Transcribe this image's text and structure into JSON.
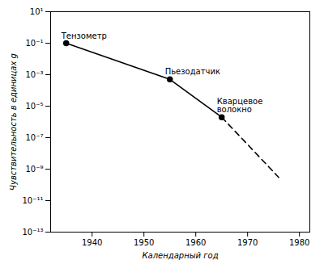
{
  "chart_data": {
    "type": "line",
    "xlabel": "Календарный год",
    "ylabel": "Чувствительность в единицах g",
    "log": "y",
    "color": "#000000",
    "xlim": [
      1932,
      1982
    ],
    "xticks": [
      1940,
      1950,
      1960,
      1970,
      1980
    ],
    "ylim": [
      1e-13,
      10
    ],
    "yticks": [
      {
        "value": 10,
        "label": "10¹"
      },
      {
        "value": 0.1,
        "label": "10⁻¹"
      },
      {
        "value": 0.001,
        "label": "10⁻³"
      },
      {
        "value": 1e-05,
        "label": "10⁻⁵"
      },
      {
        "value": 1e-07,
        "label": "10⁻⁷"
      },
      {
        "value": 1e-09,
        "label": "10⁻⁹"
      },
      {
        "value": 1e-11,
        "label": "10⁻¹¹"
      },
      {
        "value": 1e-13,
        "label": "10⁻¹³"
      }
    ],
    "series": [
      {
        "x": [
          1935,
          1955,
          1965
        ],
        "values": [
          0.1,
          0.0005,
          2e-06
        ],
        "line_style": "solid",
        "marker": "circle"
      },
      {
        "x": [
          1965,
          1976
        ],
        "values": [
          2e-06,
          3e-10
        ],
        "line_style": "dashed",
        "marker": "none"
      }
    ],
    "annotations": [
      {
        "text": "Тензометр",
        "x": 1935,
        "y": 0.1
      },
      {
        "text": "Пьезодатчик",
        "x": 1955,
        "y": 0.0005
      },
      {
        "text": "Кварцевое волокно",
        "x": 1965,
        "y": 2e-06
      }
    ]
  }
}
